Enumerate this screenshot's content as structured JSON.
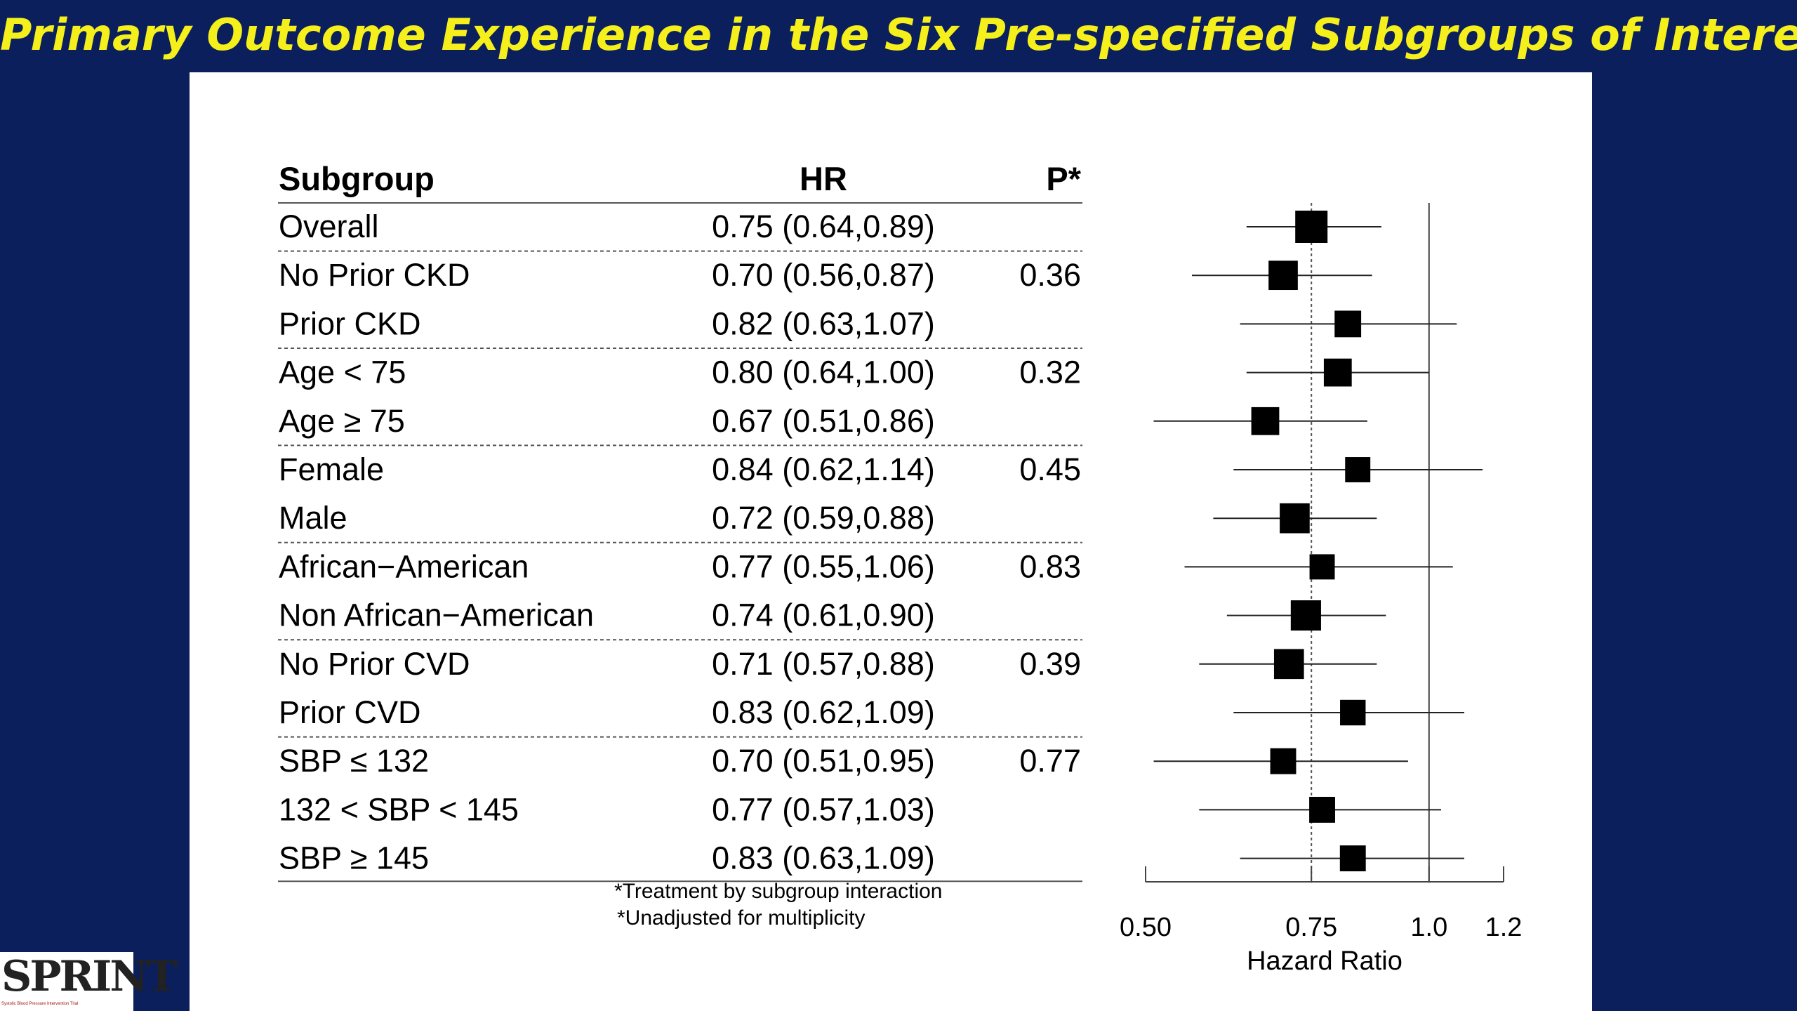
{
  "slide_title": "Primary Outcome Experience in the Six Pre-specified Subgroups of Interest",
  "logo": {
    "text": "SPRINT",
    "tagline": "Systolic Blood Pressure Intervention Trial"
  },
  "chart_data": {
    "type": "forest",
    "columns": {
      "subgroup": "Subgroup",
      "hr": "HR",
      "p": "P*"
    },
    "rows": [
      {
        "label": "Overall",
        "hr_text": "0.75 (0.64,0.89)",
        "p": "",
        "hr": 0.75,
        "lo": 0.64,
        "hi": 0.89,
        "weight": 1.0
      },
      {
        "label": "No Prior CKD",
        "hr_text": "0.70 (0.56,0.87)",
        "p": "0.36",
        "hr": 0.7,
        "lo": 0.56,
        "hi": 0.87,
        "weight": 0.82
      },
      {
        "label": "Prior CKD",
        "hr_text": "0.82 (0.63,1.07)",
        "p": "",
        "hr": 0.82,
        "lo": 0.63,
        "hi": 1.07,
        "weight": 0.66
      },
      {
        "label": "Age < 75",
        "hr_text": "0.80 (0.64,1.00)",
        "p": "0.32",
        "hr": 0.8,
        "lo": 0.64,
        "hi": 1.0,
        "weight": 0.74
      },
      {
        "label": "Age ≥ 75",
        "hr_text": "0.67 (0.51,0.86)",
        "p": "",
        "hr": 0.67,
        "lo": 0.51,
        "hi": 0.86,
        "weight": 0.74
      },
      {
        "label": "Female",
        "hr_text": "0.84 (0.62,1.14)",
        "p": "0.45",
        "hr": 0.84,
        "lo": 0.62,
        "hi": 1.14,
        "weight": 0.58
      },
      {
        "label": "Male",
        "hr_text": "0.72 (0.59,0.88)",
        "p": "",
        "hr": 0.72,
        "lo": 0.59,
        "hi": 0.88,
        "weight": 0.86
      },
      {
        "label": "African−American",
        "hr_text": "0.77 (0.55,1.06)",
        "p": "0.83",
        "hr": 0.77,
        "lo": 0.55,
        "hi": 1.06,
        "weight": 0.58
      },
      {
        "label": "Non African−American",
        "hr_text": "0.74 (0.61,0.90)",
        "p": "",
        "hr": 0.74,
        "lo": 0.61,
        "hi": 0.9,
        "weight": 0.88
      },
      {
        "label": "No Prior CVD",
        "hr_text": "0.71 (0.57,0.88)",
        "p": "0.39",
        "hr": 0.71,
        "lo": 0.57,
        "hi": 0.88,
        "weight": 0.86
      },
      {
        "label": "Prior CVD",
        "hr_text": "0.83 (0.62,1.09)",
        "p": "",
        "hr": 0.83,
        "lo": 0.62,
        "hi": 1.09,
        "weight": 0.6
      },
      {
        "label": "SBP ≤ 132",
        "hr_text": "0.70 (0.51,0.95)",
        "p": "0.77",
        "hr": 0.7,
        "lo": 0.51,
        "hi": 0.95,
        "weight": 0.62
      },
      {
        "label": "132 < SBP < 145",
        "hr_text": "0.77 (0.57,1.03)",
        "p": "",
        "hr": 0.77,
        "lo": 0.57,
        "hi": 1.03,
        "weight": 0.62
      },
      {
        "label": "SBP ≥ 145",
        "hr_text": "0.83 (0.63,1.09)",
        "p": "",
        "hr": 0.83,
        "lo": 0.63,
        "hi": 1.09,
        "weight": 0.62
      }
    ],
    "group_separators_after": [
      0,
      2,
      4,
      6,
      8,
      10
    ],
    "footnotes": [
      "*Treatment by subgroup interaction",
      "*Unadjusted for multiplicity"
    ],
    "xaxis": {
      "label": "Hazard Ratio",
      "scale": "log",
      "range": [
        0.5,
        1.2
      ],
      "ticks": [
        0.5,
        0.75,
        1.0,
        1.2
      ],
      "tick_labels": [
        "0.50",
        "0.75",
        "1.0",
        "1.2"
      ],
      "reference_line": 1.0,
      "overall_line": 0.75
    }
  }
}
